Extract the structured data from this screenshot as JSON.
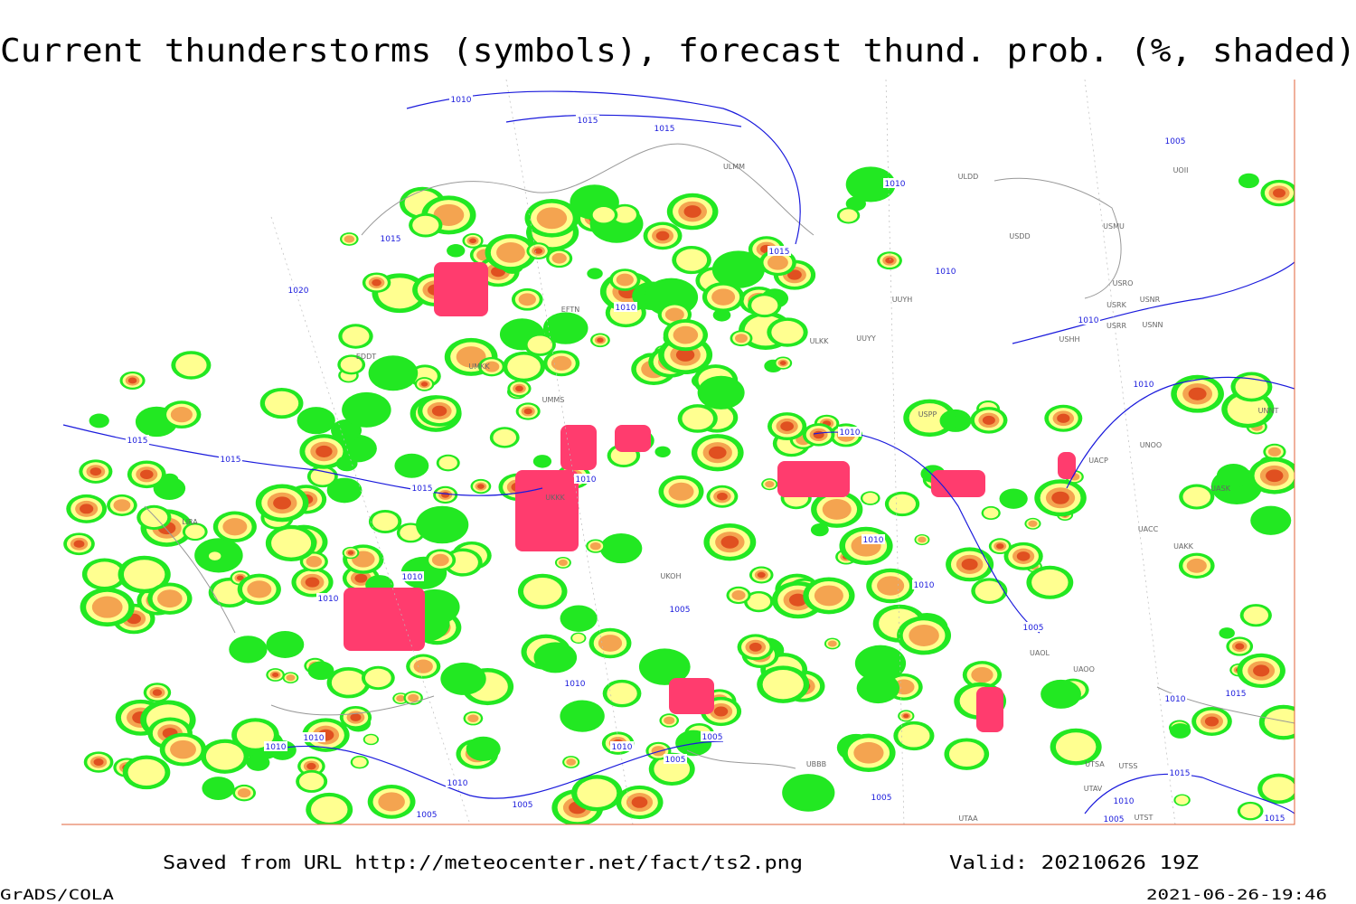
{
  "title": "Current thunderstorms (symbols), forecast thund. prob. (%, shaded)",
  "isobar_labels": [
    1010,
    1015,
    1015,
    1010,
    1015,
    1020,
    1015,
    1010,
    1010,
    1010,
    1005,
    1010,
    1010,
    1015,
    1015,
    1015,
    1010,
    1010,
    1010,
    1005,
    1010,
    1010,
    1005,
    1010,
    1010,
    1015,
    1005,
    1010,
    1005,
    1010,
    1010,
    1010,
    1005,
    1005,
    1005,
    1015,
    1010,
    1005,
    1015
  ],
  "station_labels": [
    "ULMM",
    "ULDD",
    "USDD",
    "USMU",
    "USRO",
    "USNR",
    "USRK",
    "USRR",
    "USNN",
    "USHH",
    "UOII",
    "UUYH",
    "ULKK",
    "UUYY",
    "EFTN",
    "EDDT",
    "UMKK",
    "UMMS",
    "UKKK",
    "UKOH",
    "USPP",
    "UNOO",
    "UACP",
    "UASK",
    "UACC",
    "UAKK",
    "UAOL",
    "UAOO",
    "UTSA",
    "UTSS",
    "UTAV",
    "UTAA",
    "UBBB",
    "UTST",
    "LIRA",
    "UNNT"
  ],
  "footer": {
    "source": "Saved from URL http://meteocenter.net/fact/ts2.png",
    "valid": "Valid: 20210626 19Z",
    "software": "GrADS/COLA",
    "timestamp": "2021-06-26-19:46"
  }
}
